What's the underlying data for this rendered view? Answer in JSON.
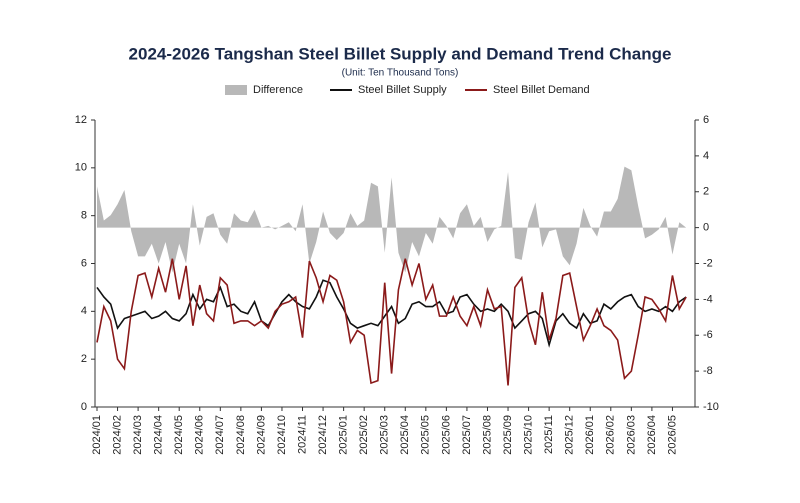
{
  "chart_data": {
    "type": "line",
    "title": "2024-2026 Tangshan Steel Billet Supply and Demand Trend Change",
    "subtitle": "(Unit: Ten Thousand Tons)",
    "categories": [
      "2024/01",
      null,
      null,
      "2024/02",
      null,
      null,
      "2024/03",
      null,
      null,
      "2024/04",
      null,
      null,
      "2024/05",
      null,
      null,
      "2024/06",
      null,
      null,
      "2024/07",
      null,
      null,
      "2024/08",
      null,
      null,
      "2024/09",
      null,
      null,
      "2024/10",
      null,
      null,
      "2024/11",
      null,
      null,
      "2024/12",
      null,
      null,
      "2025/01",
      null,
      null,
      "2025/02",
      null,
      null,
      "2025/03",
      null,
      null,
      "2025/04",
      null,
      null,
      "2025/05",
      null,
      null,
      "2025/06",
      null,
      null,
      "2025/07",
      null,
      null,
      "2025/08",
      null,
      null,
      "2025/09",
      null,
      null,
      "2025/10",
      null,
      null,
      "2025/11",
      null,
      null,
      "2025/12",
      null,
      null,
      "2026/01",
      null,
      null,
      "2026/02",
      null,
      null,
      "2026/03",
      null,
      null,
      "2026/04",
      null,
      null,
      "2026/05",
      null,
      null
    ],
    "ylim": [
      0,
      12
    ],
    "yticks": [
      0,
      2,
      4,
      6,
      8,
      10,
      12
    ],
    "y2lim": [
      -10,
      6
    ],
    "y2ticks": [
      -10,
      -8,
      -6,
      -4,
      -2,
      0,
      2,
      4,
      6
    ],
    "grid": false,
    "legend": "top",
    "series": [
      {
        "name": "Difference",
        "style": "area",
        "axis": "y2",
        "color": "#b8b8b8",
        "values": [
          2.3,
          0.4,
          0.7,
          1.3,
          2.1,
          -0.2,
          -1.6,
          -1.6,
          -0.9,
          -2.0,
          -0.8,
          -2.5,
          -0.9,
          -2.0,
          1.3,
          -1.0,
          0.6,
          0.8,
          -0.4,
          -0.9,
          0.8,
          0.4,
          0.3,
          1.0,
          0.0,
          0.1,
          -0.1,
          0.1,
          0.3,
          -0.2,
          1.3,
          -2.0,
          -0.8,
          0.9,
          -0.3,
          -0.7,
          -0.3,
          0.8,
          0.1,
          0.4,
          2.5,
          2.3,
          -1.4,
          2.8,
          -1.4,
          -2.5,
          -0.8,
          -1.6,
          -0.3,
          -0.9,
          0.6,
          0.1,
          -0.6,
          0.8,
          1.3,
          0.1,
          0.6,
          -0.8,
          -0.1,
          0.1,
          3.1,
          -1.7,
          -1.8,
          0.3,
          1.4,
          -1.1,
          -0.2,
          -0.1,
          -1.6,
          -2.1,
          -0.9,
          1.1,
          0.1,
          -0.5,
          0.9,
          0.9,
          1.6,
          3.4,
          3.2,
          1.2,
          -0.6,
          -0.4,
          -0.1,
          0.6,
          -1.5,
          0.3,
          0.0
        ]
      },
      {
        "name": "Steel Billet Supply",
        "style": "line",
        "color": "#111111",
        "values": [
          5.0,
          4.6,
          4.3,
          3.3,
          3.7,
          3.8,
          3.9,
          4.0,
          3.7,
          3.8,
          4.0,
          3.7,
          3.6,
          3.9,
          4.7,
          4.1,
          4.5,
          4.4,
          5.0,
          4.2,
          4.3,
          4.0,
          3.9,
          4.4,
          3.6,
          3.4,
          3.9,
          4.4,
          4.7,
          4.4,
          4.2,
          4.1,
          4.6,
          5.3,
          5.2,
          4.6,
          4.1,
          3.5,
          3.3,
          3.4,
          3.5,
          3.4,
          3.8,
          4.2,
          3.5,
          3.7,
          4.3,
          4.4,
          4.2,
          4.2,
          4.4,
          3.9,
          4.0,
          4.6,
          4.7,
          4.3,
          4.0,
          4.1,
          4.0,
          4.3,
          4.0,
          3.3,
          3.6,
          3.9,
          4.0,
          3.7,
          2.6,
          3.6,
          3.9,
          3.5,
          3.3,
          3.9,
          3.5,
          3.6,
          4.3,
          4.1,
          4.4,
          4.6,
          4.7,
          4.2,
          4.0,
          4.1,
          4.0,
          4.2,
          4.0,
          4.4,
          4.6
        ]
      },
      {
        "name": "Steel Billet Demand",
        "style": "line",
        "color": "#8b1a1a",
        "values": [
          2.7,
          4.2,
          3.6,
          2.0,
          1.6,
          4.0,
          5.5,
          5.6,
          4.6,
          5.8,
          4.8,
          6.2,
          4.5,
          5.9,
          3.4,
          5.1,
          3.9,
          3.6,
          5.4,
          5.1,
          3.5,
          3.6,
          3.6,
          3.4,
          3.6,
          3.3,
          4.0,
          4.3,
          4.4,
          4.6,
          2.9,
          6.1,
          5.4,
          4.4,
          5.5,
          5.3,
          4.4,
          2.7,
          3.2,
          3.0,
          1.0,
          1.1,
          5.2,
          1.4,
          4.9,
          6.2,
          5.1,
          6.0,
          4.5,
          5.1,
          3.8,
          3.8,
          4.6,
          3.8,
          3.4,
          4.2,
          3.4,
          4.9,
          4.1,
          4.2,
          0.9,
          5.0,
          5.4,
          3.6,
          2.6,
          4.8,
          2.8,
          3.7,
          5.5,
          5.6,
          4.2,
          2.8,
          3.4,
          4.1,
          3.4,
          3.2,
          2.8,
          1.2,
          1.5,
          3.0,
          4.6,
          4.5,
          4.1,
          3.6,
          5.5,
          4.1,
          4.6
        ]
      }
    ]
  }
}
